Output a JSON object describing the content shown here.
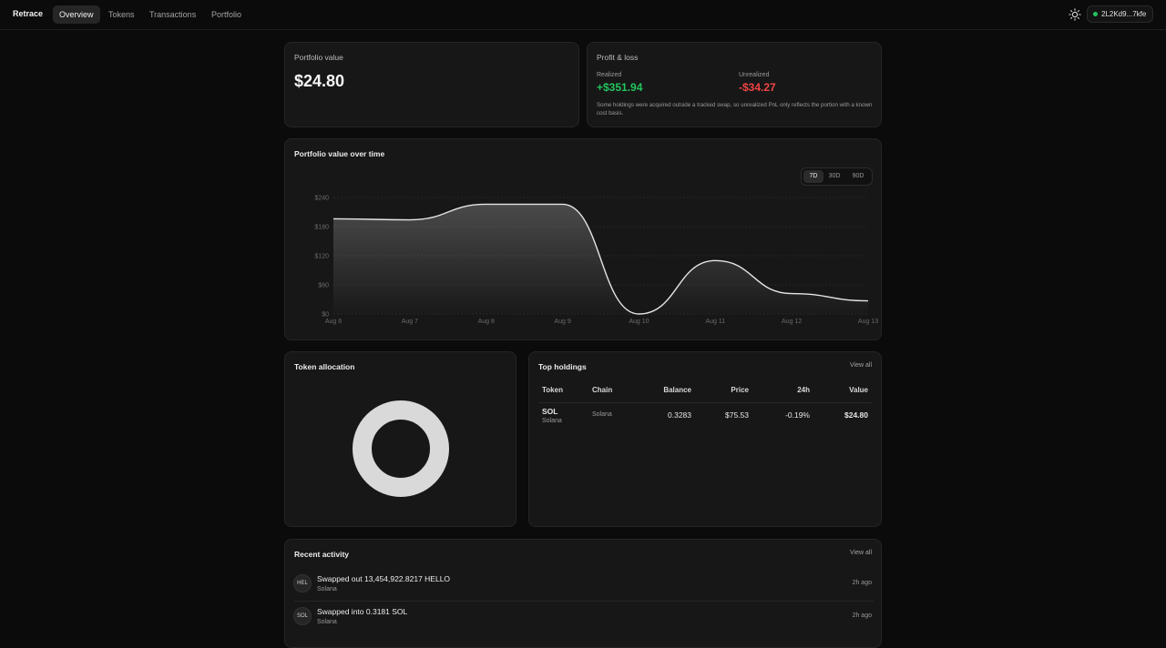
{
  "app": {
    "brand": "Retrace"
  },
  "nav": {
    "tabs": [
      {
        "label": "Overview",
        "active": true
      },
      {
        "label": "Tokens",
        "active": false
      },
      {
        "label": "Transactions",
        "active": false
      },
      {
        "label": "Portfolio",
        "active": false
      }
    ]
  },
  "header": {
    "theme_icon": "sun-icon",
    "wallet_label": "2L2Kd9...7kfe",
    "wallet_status_color": "#22c55e"
  },
  "portfolio_value": {
    "title": "Portfolio value",
    "value": "$24.80"
  },
  "pnl": {
    "title": "Profit & loss",
    "realized_label": "Realized",
    "realized_value": "+$351.94",
    "unrealized_label": "Unrealized",
    "unrealized_value": "-$34.27",
    "note": "Some holdings were acquired outside a tracked swap, so unrealized PnL only reflects the portion with a known cost basis."
  },
  "chart_section": {
    "title": "Portfolio value over time",
    "ranges": [
      {
        "label": "7D",
        "active": true
      },
      {
        "label": "30D",
        "active": false
      },
      {
        "label": "90D",
        "active": false
      }
    ]
  },
  "chart_data": {
    "type": "area",
    "x": [
      "Aug 6",
      "Aug 7",
      "Aug 8",
      "Aug 9",
      "Aug 10",
      "Aug 11",
      "Aug 12",
      "Aug 13"
    ],
    "values": [
      196,
      194,
      226,
      226,
      0,
      110,
      42,
      27
    ],
    "y_ticks": [
      "$0",
      "$60",
      "$120",
      "$180",
      "$240"
    ],
    "ylim": [
      0,
      240
    ],
    "grid": true,
    "line_color": "#e5e5e5"
  },
  "allocation": {
    "title": "Token allocation",
    "segments": [
      {
        "token": "SOL",
        "share": 1.0,
        "color": "#d9d9d9"
      }
    ]
  },
  "holdings": {
    "title": "Top holdings",
    "view_all": "View all",
    "columns": [
      "Token",
      "Chain",
      "Balance",
      "Price",
      "24h",
      "Value"
    ],
    "rows": [
      {
        "token": "SOL",
        "token_sub": "Solana",
        "chain": "Solana",
        "balance": "0.3283",
        "price": "$75.53",
        "change": "-0.19%",
        "value": "$24.80"
      }
    ]
  },
  "activity": {
    "title": "Recent activity",
    "view_all": "View all",
    "items": [
      {
        "avatar": "HEL",
        "title": "Swapped out 13,454,922.8217 HELLO",
        "sub": "Solana",
        "time": "2h ago"
      },
      {
        "avatar": "SOL",
        "title": "Swapped into 0.3181 SOL",
        "sub": "Solana",
        "time": "2h ago"
      }
    ]
  }
}
